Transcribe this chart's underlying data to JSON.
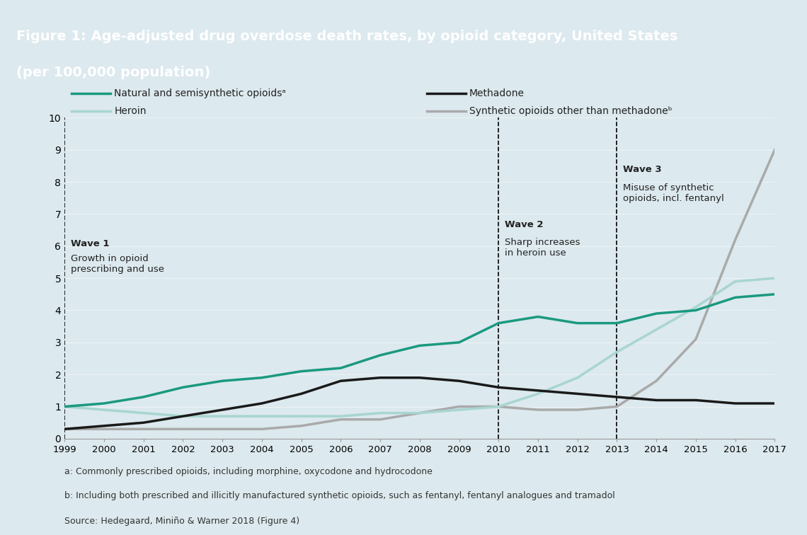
{
  "title_line1": "Figure 1: Age-adjusted drug overdose death rates, by opioid category, United States",
  "title_line2": "(per 100,000 population)",
  "title_bg_color": "#1a7a6e",
  "title_text_color": "#ffffff",
  "chart_bg_color": "#dce9ee",
  "outer_bg_color": "#dce9ee",
  "years": [
    1999,
    2000,
    2001,
    2002,
    2003,
    2004,
    2005,
    2006,
    2007,
    2008,
    2009,
    2010,
    2011,
    2012,
    2013,
    2014,
    2015,
    2016,
    2017
  ],
  "natural_semisynthetic": [
    1.0,
    1.1,
    1.3,
    1.6,
    1.8,
    1.9,
    2.1,
    2.2,
    2.6,
    2.9,
    3.0,
    3.6,
    3.8,
    3.6,
    3.6,
    3.9,
    4.0,
    4.4,
    4.5
  ],
  "heroin": [
    1.0,
    0.9,
    0.8,
    0.7,
    0.7,
    0.7,
    0.7,
    0.7,
    0.8,
    0.8,
    0.9,
    1.0,
    1.4,
    1.9,
    2.7,
    3.4,
    4.1,
    4.9,
    5.0
  ],
  "methadone": [
    0.3,
    0.4,
    0.5,
    0.7,
    0.9,
    1.1,
    1.4,
    1.8,
    1.9,
    1.9,
    1.8,
    1.6,
    1.5,
    1.4,
    1.3,
    1.2,
    1.2,
    1.1,
    1.1
  ],
  "synthetic_other": [
    0.3,
    0.3,
    0.3,
    0.3,
    0.3,
    0.3,
    0.4,
    0.6,
    0.6,
    0.8,
    1.0,
    1.0,
    0.9,
    0.9,
    1.0,
    1.8,
    3.1,
    6.2,
    9.0
  ],
  "natural_color": "#1a9980",
  "heroin_color": "#a8d5d0",
  "methadone_color": "#1a1a1a",
  "synthetic_color": "#aaaaaa",
  "ylim": [
    0,
    10
  ],
  "yticks": [
    0,
    1,
    2,
    3,
    4,
    5,
    6,
    7,
    8,
    9,
    10
  ],
  "wave1_year": 1999,
  "wave2_year": 2010,
  "wave3_year": 2013,
  "wave1_label_bold": "Wave 1",
  "wave1_label_text": "Growth in opioid\nprescribing and use",
  "wave2_label_bold": "Wave 2",
  "wave2_label_text": "Sharp increases\nin heroin use",
  "wave3_label_bold": "Wave 3",
  "wave3_label_text": "Misuse of synthetic\nopioids, incl. fentanyl",
  "footnote1": "a: Commonly prescribed opioids, including morphine, oxycodone and hydrocodone",
  "footnote2": "b: Including both prescribed and illicitly manufactured synthetic opioids, such as fentanyl, fentanyl analogues and tramadol",
  "footnote3": "Source: Hedegaard, Miniño & Warner 2018 (Figure 4)",
  "legend_natural": "Natural and semisynthetic opioidsᵃ",
  "legend_heroin": "Heroin",
  "legend_methadone": "Methadone",
  "legend_synthetic": "Synthetic opioids other than methadoneᵇ"
}
